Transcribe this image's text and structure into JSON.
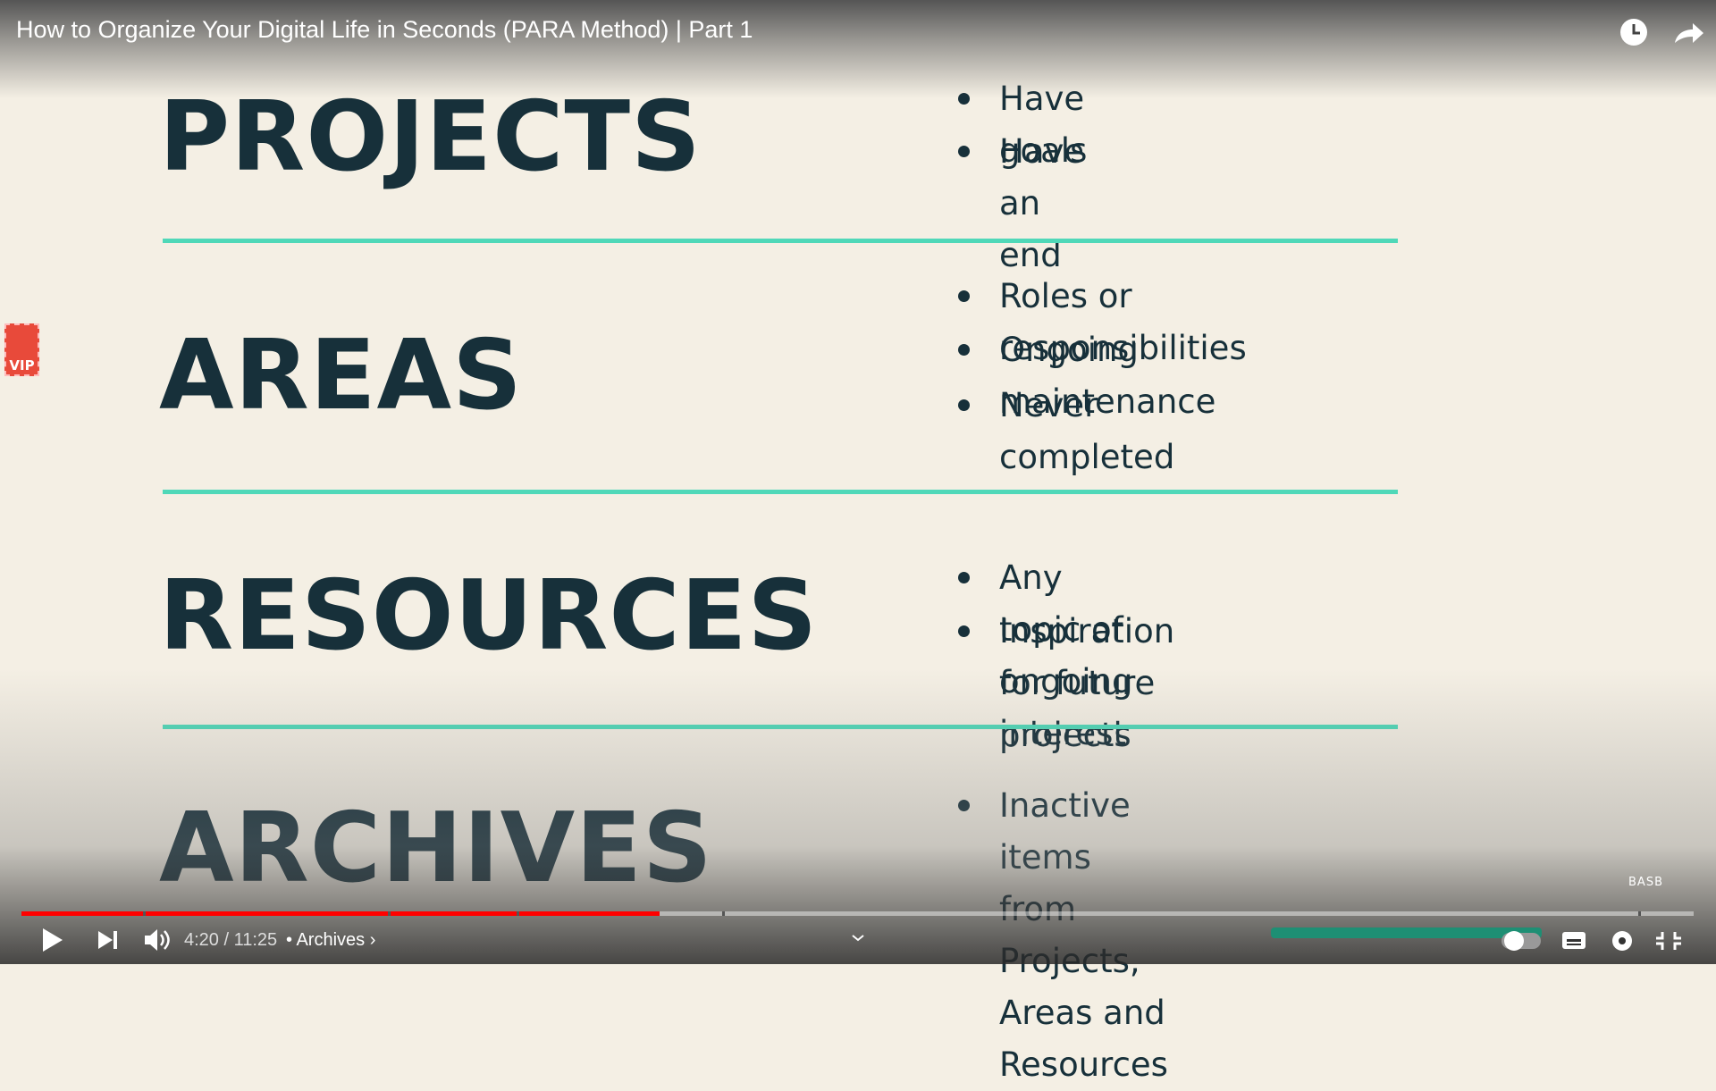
{
  "video_title": "How to Organize Your Digital Life in Seconds (PARA Method) | Part 1",
  "slide": {
    "sections": [
      {
        "heading": "PROJECTS",
        "bullets": [
          [
            "Have goals"
          ],
          [
            "Have an end"
          ]
        ]
      },
      {
        "heading": "AREAS",
        "bullets": [
          [
            "Roles or responsibilities"
          ],
          [
            "Ongoing maintenance"
          ],
          [
            "Never completed"
          ]
        ]
      },
      {
        "heading": "RESOURCES",
        "bullets": [
          [
            "Any topic of ongoing interest"
          ],
          [
            "Inspiration for future projects"
          ]
        ]
      },
      {
        "heading": "ARCHIVES",
        "bullets": [
          [
            "Inactive items from",
            "Projects, Areas and Resources"
          ]
        ]
      }
    ],
    "watermark": "BASB"
  },
  "badge": "VIP",
  "player": {
    "time": "4:20 / 11:25",
    "chapter": "Archives"
  }
}
